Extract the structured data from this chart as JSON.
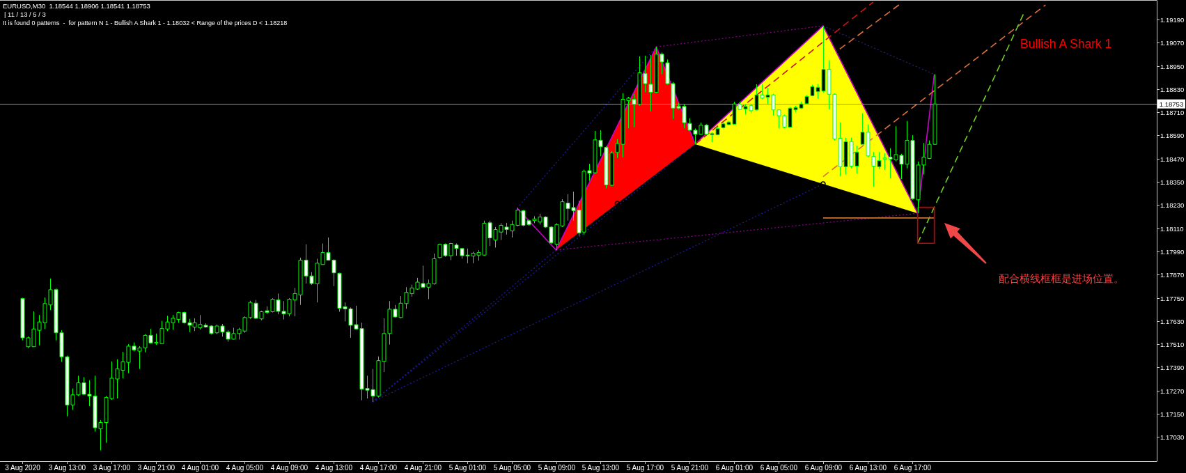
{
  "chart_data": {
    "type": "candlestick",
    "title": "EURUSD,M30  1.18544 1.18906 1.18541 1.18753",
    "subtitle": "| 11 / 13 / 5 / 3",
    "annotations": [
      "It is found 0 patterns  -  for pattern N 1 - Bullish A Shark 1 - 1.18032 < Range of the prices D < 1.18218",
      "Bullish A Shark 1",
      "配合横线框框是进场位置。"
    ],
    "color": "#00ff00",
    "x": [
      "2020-08-03T09:00",
      "2020-08-03T09:30",
      "2020-08-03T10:00",
      "2020-08-03T10:30",
      "2020-08-03T11:00",
      "2020-08-03T11:30",
      "2020-08-03T12:00",
      "2020-08-03T12:30",
      "2020-08-03T13:00",
      "2020-08-03T13:30",
      "2020-08-03T14:00",
      "2020-08-03T14:30",
      "2020-08-03T15:00",
      "2020-08-03T15:30",
      "2020-08-03T16:00",
      "2020-08-03T16:30",
      "2020-08-03T17:00",
      "2020-08-03T17:30",
      "2020-08-03T18:00",
      "2020-08-03T18:30",
      "2020-08-03T19:00",
      "2020-08-03T19:30",
      "2020-08-03T20:00",
      "2020-08-03T20:30",
      "2020-08-03T21:00",
      "2020-08-03T21:30",
      "2020-08-03T22:00",
      "2020-08-03T22:30",
      "2020-08-03T23:00",
      "2020-08-03T23:30",
      "2020-08-04T00:00",
      "2020-08-04T00:30",
      "2020-08-04T01:00",
      "2020-08-04T01:30",
      "2020-08-04T02:00",
      "2020-08-04T02:30",
      "2020-08-04T03:00",
      "2020-08-04T03:30",
      "2020-08-04T04:00",
      "2020-08-04T04:30",
      "2020-08-04T05:00",
      "2020-08-04T05:30",
      "2020-08-04T06:00",
      "2020-08-04T06:30",
      "2020-08-04T07:00",
      "2020-08-04T07:30",
      "2020-08-04T08:00",
      "2020-08-04T08:30",
      "2020-08-04T09:00",
      "2020-08-04T09:30",
      "2020-08-04T10:00",
      "2020-08-04T10:30",
      "2020-08-04T11:00",
      "2020-08-04T11:30",
      "2020-08-04T12:00",
      "2020-08-04T12:30",
      "2020-08-04T13:00",
      "2020-08-04T13:30",
      "2020-08-04T14:00",
      "2020-08-04T14:30",
      "2020-08-04T15:00",
      "2020-08-04T15:30",
      "2020-08-04T16:00",
      "2020-08-04T16:30",
      "2020-08-04T17:00",
      "2020-08-04T17:30",
      "2020-08-04T18:00",
      "2020-08-04T18:30",
      "2020-08-04T19:00",
      "2020-08-04T19:30",
      "2020-08-04T20:00",
      "2020-08-04T20:30",
      "2020-08-04T21:00",
      "2020-08-04T21:30",
      "2020-08-04T22:00",
      "2020-08-04T22:30",
      "2020-08-04T23:00",
      "2020-08-04T23:30",
      "2020-08-05T00:00",
      "2020-08-05T00:30",
      "2020-08-05T01:00",
      "2020-08-05T01:30",
      "2020-08-05T02:00",
      "2020-08-05T02:30",
      "2020-08-05T03:00",
      "2020-08-05T03:30",
      "2020-08-05T04:00",
      "2020-08-05T04:30",
      "2020-08-05T05:00",
      "2020-08-05T05:30",
      "2020-08-05T06:00",
      "2020-08-05T06:30",
      "2020-08-05T07:00",
      "2020-08-05T07:30",
      "2020-08-05T08:00",
      "2020-08-05T08:30",
      "2020-08-05T09:00",
      "2020-08-05T09:30",
      "2020-08-05T10:00",
      "2020-08-05T10:30",
      "2020-08-05T11:00",
      "2020-08-05T11:30",
      "2020-08-05T12:00",
      "2020-08-05T12:30",
      "2020-08-05T13:00",
      "2020-08-05T13:30",
      "2020-08-05T14:00",
      "2020-08-05T14:30",
      "2020-08-05T15:00",
      "2020-08-05T15:30",
      "2020-08-05T16:00",
      "2020-08-05T16:30",
      "2020-08-05T17:00",
      "2020-08-05T17:30",
      "2020-08-05T18:00",
      "2020-08-05T18:30",
      "2020-08-05T19:00",
      "2020-08-05T19:30",
      "2020-08-05T20:00",
      "2020-08-05T20:30",
      "2020-08-05T21:00",
      "2020-08-05T21:30",
      "2020-08-05T22:00",
      "2020-08-05T22:30",
      "2020-08-05T23:00",
      "2020-08-05T23:30",
      "2020-08-06T00:00",
      "2020-08-06T00:30",
      "2020-08-06T01:00",
      "2020-08-06T01:30",
      "2020-08-06T02:00",
      "2020-08-06T02:30",
      "2020-08-06T03:00",
      "2020-08-06T03:30",
      "2020-08-06T04:00",
      "2020-08-06T04:30",
      "2020-08-06T05:00",
      "2020-08-06T05:30",
      "2020-08-06T06:00",
      "2020-08-06T06:30",
      "2020-08-06T07:00",
      "2020-08-06T07:30",
      "2020-08-06T08:00",
      "2020-08-06T08:30",
      "2020-08-06T09:00",
      "2020-08-06T09:30",
      "2020-08-06T10:00",
      "2020-08-06T10:30",
      "2020-08-06T11:00",
      "2020-08-06T11:30",
      "2020-08-06T12:00",
      "2020-08-06T12:30",
      "2020-08-06T13:00",
      "2020-08-06T13:30",
      "2020-08-06T14:00",
      "2020-08-06T14:30",
      "2020-08-06T15:00",
      "2020-08-06T15:30",
      "2020-08-06T16:00",
      "2020-08-06T16:30",
      "2020-08-06T17:00",
      "2020-08-06T17:30",
      "2020-08-06T18:00",
      "2020-08-06T18:30",
      "2020-08-06T19:00"
    ],
    "ohlc": [
      [
        1.17746,
        1.1775,
        1.1753,
        1.17543
      ],
      [
        1.17497,
        1.1755,
        1.1749,
        1.17543
      ],
      [
        1.17497,
        1.1768,
        1.17495,
        1.17589
      ],
      [
        1.17582,
        1.17661,
        1.17504,
        1.17625
      ],
      [
        1.17621,
        1.17752,
        1.17589,
        1.1772
      ],
      [
        1.17713,
        1.1785,
        1.17687,
        1.17792
      ],
      [
        1.17792,
        1.17798,
        1.1753,
        1.17569
      ],
      [
        1.17569,
        1.17582,
        1.17419,
        1.17445
      ],
      [
        1.17445,
        1.17451,
        1.17137,
        1.17196
      ],
      [
        1.17196,
        1.17281,
        1.1717,
        1.17248
      ],
      [
        1.17248,
        1.17347,
        1.17242,
        1.1731
      ],
      [
        1.1731,
        1.1734,
        1.17249,
        1.17251
      ],
      [
        1.17251,
        1.17324,
        1.1719,
        1.17242
      ],
      [
        1.17242,
        1.17347,
        1.17059,
        1.17078
      ],
      [
        1.17072,
        1.17118,
        1.16961,
        1.17105
      ],
      [
        1.17105,
        1.17242,
        1.17,
        1.17235
      ],
      [
        1.17229,
        1.17421,
        1.17222,
        1.17334
      ],
      [
        1.1733,
        1.17432,
        1.17229,
        1.17382
      ],
      [
        1.17375,
        1.17471,
        1.17334,
        1.17419
      ],
      [
        1.17416,
        1.1751,
        1.1736,
        1.175
      ],
      [
        1.175,
        1.17519,
        1.17473,
        1.17481
      ],
      [
        1.17474,
        1.175,
        1.17382,
        1.17491
      ],
      [
        1.17491,
        1.17562,
        1.17468,
        1.17556
      ],
      [
        1.17556,
        1.17589,
        1.17513,
        1.17517
      ],
      [
        1.17517,
        1.17565,
        1.17507,
        1.1752
      ],
      [
        1.17513,
        1.17631,
        1.1751,
        1.17591
      ],
      [
        1.17589,
        1.17657,
        1.17578,
        1.17625
      ],
      [
        1.17621,
        1.17661,
        1.17586,
        1.17644
      ],
      [
        1.17638,
        1.17678,
        1.17621,
        1.17674
      ],
      [
        1.17674,
        1.17678,
        1.17617,
        1.17621
      ],
      [
        1.17621,
        1.17641,
        1.17573,
        1.17608
      ],
      [
        1.17598,
        1.17644,
        1.17578,
        1.17621
      ],
      [
        1.17595,
        1.17661,
        1.17586,
        1.17612
      ],
      [
        1.17608,
        1.17618,
        1.17595,
        1.17599
      ],
      [
        1.17604,
        1.17608,
        1.1756,
        1.17565
      ],
      [
        1.17569,
        1.17612,
        1.17562,
        1.17604
      ],
      [
        1.17604,
        1.17615,
        1.17549,
        1.17573
      ],
      [
        1.17573,
        1.17582,
        1.17523,
        1.17536
      ],
      [
        1.17536,
        1.17595,
        1.17534,
        1.17565
      ],
      [
        1.17565,
        1.17595,
        1.17534,
        1.17586
      ],
      [
        1.17578,
        1.17654,
        1.17569,
        1.17648
      ],
      [
        1.17648,
        1.17735,
        1.17641,
        1.17726
      ],
      [
        1.17722,
        1.17739,
        1.17641,
        1.17644
      ],
      [
        1.17641,
        1.17683,
        1.17634,
        1.17678
      ],
      [
        1.17683,
        1.17706,
        1.17667,
        1.17674
      ],
      [
        1.17678,
        1.17748,
        1.17674,
        1.17743
      ],
      [
        1.17739,
        1.17772,
        1.17665,
        1.1768
      ],
      [
        1.1768,
        1.17733,
        1.17638,
        1.17667
      ],
      [
        1.17667,
        1.17748,
        1.17654,
        1.17743
      ],
      [
        1.17739,
        1.17801,
        1.17654,
        1.17772
      ],
      [
        1.17765,
        1.17958,
        1.17713,
        1.17945
      ],
      [
        1.17945,
        1.18027,
        1.17824,
        1.17863
      ],
      [
        1.17863,
        1.17883,
        1.17817,
        1.17824
      ],
      [
        1.17822,
        1.17952,
        1.17726,
        1.17929
      ],
      [
        1.17922,
        1.18031,
        1.17922,
        1.17984
      ],
      [
        1.17984,
        1.18062,
        1.17942,
        1.17945
      ],
      [
        1.17945,
        1.17949,
        1.17811,
        1.17879
      ],
      [
        1.17877,
        1.17879,
        1.17678,
        1.17696
      ],
      [
        1.17704,
        1.17726,
        1.17628,
        1.17693
      ],
      [
        1.17693,
        1.177,
        1.17543,
        1.17608
      ],
      [
        1.17611,
        1.17709,
        1.17586,
        1.17589
      ],
      [
        1.17591,
        1.17621,
        1.1722,
        1.17277
      ],
      [
        1.17281,
        1.17347,
        1.17229,
        1.17272
      ],
      [
        1.17275,
        1.17382,
        1.17212,
        1.17242
      ],
      [
        1.17242,
        1.17447,
        1.17235,
        1.17425
      ],
      [
        1.17421,
        1.17644,
        1.17366,
        1.17565
      ],
      [
        1.17565,
        1.17733,
        1.17508,
        1.17691
      ],
      [
        1.17691,
        1.17713,
        1.17648,
        1.17651
      ],
      [
        1.17648,
        1.17759,
        1.17644,
        1.17722
      ],
      [
        1.1772,
        1.17805,
        1.17693,
        1.17778
      ],
      [
        1.17772,
        1.17818,
        1.17756,
        1.17801
      ],
      [
        1.17795,
        1.17853,
        1.17791,
        1.17831
      ],
      [
        1.17824,
        1.17916,
        1.17801,
        1.17805
      ],
      [
        1.17805,
        1.17844,
        1.17743,
        1.17824
      ],
      [
        1.17822,
        1.17979,
        1.17818,
        1.17952
      ],
      [
        1.17958,
        1.1803,
        1.17955,
        1.18027
      ],
      [
        1.18027,
        1.18031,
        1.17962,
        1.17968
      ],
      [
        1.17968,
        1.18034,
        1.17945,
        1.18031
      ],
      [
        1.18023,
        1.18031,
        1.17968,
        1.18005
      ],
      [
        1.18005,
        1.18008,
        1.17952,
        1.17968
      ],
      [
        1.17971,
        1.18005,
        1.17929,
        1.17966
      ],
      [
        1.17966,
        1.17988,
        1.17929,
        1.17981
      ],
      [
        1.17971,
        1.17997,
        1.17942,
        1.17984
      ],
      [
        1.17971,
        1.18149,
        1.17968,
        1.18136
      ],
      [
        1.18138,
        1.18149,
        1.18018,
        1.1806
      ],
      [
        1.18049,
        1.18116,
        1.1801,
        1.18103
      ],
      [
        1.1809,
        1.18136,
        1.18049,
        1.18125
      ],
      [
        1.18116,
        1.18138,
        1.18077,
        1.18103
      ],
      [
        1.18096,
        1.18149,
        1.18062,
        1.18129
      ],
      [
        1.18125,
        1.18214,
        1.1812,
        1.18204
      ],
      [
        1.18201,
        1.18204,
        1.1812,
        1.18125
      ],
      [
        1.18149,
        1.18155,
        1.18123,
        1.18129
      ],
      [
        1.18149,
        1.18172,
        1.18136,
        1.18158
      ],
      [
        1.18142,
        1.18185,
        1.18129,
        1.18168
      ],
      [
        1.18168,
        1.18172,
        1.18112,
        1.18116
      ],
      [
        1.18116,
        1.1812,
        1.1803,
        1.18034
      ],
      [
        1.18027,
        1.18136,
        1.17997,
        1.18129
      ],
      [
        1.18122,
        1.1826,
        1.18116,
        1.18247
      ],
      [
        1.1824,
        1.18286,
        1.18149,
        1.18211
      ],
      [
        1.18217,
        1.18299,
        1.18149,
        1.18201
      ],
      [
        1.18204,
        1.18253,
        1.1807,
        1.18086
      ],
      [
        1.1809,
        1.18413,
        1.18077,
        1.18404
      ],
      [
        1.18408,
        1.18443,
        1.18355,
        1.18395
      ],
      [
        1.18397,
        1.18613,
        1.18391,
        1.18567
      ],
      [
        1.18565,
        1.18617,
        1.18482,
        1.18531
      ],
      [
        1.18528,
        1.18535,
        1.18316,
        1.18334
      ],
      [
        1.18332,
        1.18508,
        1.18329,
        1.18499
      ],
      [
        1.18502,
        1.1857,
        1.18473,
        1.18548
      ],
      [
        1.18544,
        1.18809,
        1.18476,
        1.18777
      ],
      [
        1.1877,
        1.1879,
        1.18626,
        1.18783
      ],
      [
        1.18777,
        1.18805,
        1.18633,
        1.18751
      ],
      [
        1.18751,
        1.18999,
        1.18744,
        1.18914
      ],
      [
        1.1891,
        1.19002,
        1.18813,
        1.18858
      ],
      [
        1.18855,
        1.19006,
        1.18714,
        1.18813
      ],
      [
        1.18813,
        1.19048,
        1.18809,
        1.1901
      ],
      [
        1.1901,
        1.19019,
        1.18907,
        1.1897
      ],
      [
        1.18966,
        1.18983,
        1.18853,
        1.18858
      ],
      [
        1.18858,
        1.18866,
        1.18675,
        1.18731
      ],
      [
        1.1874,
        1.18757,
        1.18724,
        1.18731
      ],
      [
        1.1874,
        1.18751,
        1.18626,
        1.18656
      ],
      [
        1.18652,
        1.18679,
        1.18613,
        1.18617
      ],
      [
        1.18617,
        1.18626,
        1.18545,
        1.18596
      ],
      [
        1.18596,
        1.18656,
        1.18593,
        1.18643
      ],
      [
        1.18643,
        1.18648,
        1.18593,
        1.18596
      ],
      [
        1.18593,
        1.18606,
        1.18554,
        1.186
      ],
      [
        1.18593,
        1.18633,
        1.1859,
        1.18626
      ],
      [
        1.1863,
        1.18656,
        1.18626,
        1.1865
      ],
      [
        1.18646,
        1.18665,
        1.18643,
        1.18659
      ],
      [
        1.18648,
        1.18764,
        1.18646,
        1.18753
      ],
      [
        1.18751,
        1.18764,
        1.18722,
        1.18724
      ],
      [
        1.18727,
        1.18751,
        1.18698,
        1.1874
      ],
      [
        1.18744,
        1.18751,
        1.18711,
        1.18718
      ],
      [
        1.18722,
        1.18855,
        1.18718,
        1.188
      ],
      [
        1.188,
        1.18855,
        1.18777,
        1.18783
      ],
      [
        1.18787,
        1.18836,
        1.18751,
        1.188
      ],
      [
        1.188,
        1.18805,
        1.18692,
        1.18722
      ],
      [
        1.18722,
        1.18724,
        1.18626,
        1.18692
      ],
      [
        1.18692,
        1.18698,
        1.18626,
        1.18633
      ],
      [
        1.18633,
        1.18738,
        1.1863,
        1.18731
      ],
      [
        1.18722,
        1.18744,
        1.18711,
        1.18735
      ],
      [
        1.18731,
        1.18764,
        1.18727,
        1.18753
      ],
      [
        1.18754,
        1.18799,
        1.18752,
        1.18792
      ],
      [
        1.18795,
        1.18852,
        1.18792,
        1.18843
      ],
      [
        1.18816,
        1.18856,
        1.18781,
        1.18839
      ],
      [
        1.18819,
        1.19157,
        1.18812,
        1.18932
      ],
      [
        1.18932,
        1.18979,
        1.18725,
        1.18803
      ],
      [
        1.18803,
        1.18808,
        1.18564,
        1.18571
      ],
      [
        1.18575,
        1.18658,
        1.1838,
        1.18428
      ],
      [
        1.18428,
        1.18578,
        1.18388,
        1.18558
      ],
      [
        1.18558,
        1.18578,
        1.1842,
        1.18431
      ],
      [
        1.18431,
        1.18538,
        1.18393,
        1.18504
      ],
      [
        1.18544,
        1.18705,
        1.1854,
        1.18607
      ],
      [
        1.18607,
        1.18647,
        1.18478,
        1.18484
      ],
      [
        1.18481,
        1.18504,
        1.18324,
        1.18431
      ],
      [
        1.18428,
        1.18504,
        1.18417,
        1.1846
      ],
      [
        1.18473,
        1.18498,
        1.18411,
        1.18468
      ],
      [
        1.18478,
        1.18524,
        1.18367,
        1.18468
      ],
      [
        1.18464,
        1.18638,
        1.18457,
        1.18491
      ],
      [
        1.18487,
        1.18495,
        1.18364,
        1.18441
      ],
      [
        1.18441,
        1.18665,
        1.1842,
        1.18564
      ],
      [
        1.18564,
        1.18591,
        1.18257,
        1.18263
      ],
      [
        1.18257,
        1.18455,
        1.18187,
        1.18437
      ],
      [
        1.18437,
        1.18551,
        1.18388,
        1.18478
      ],
      [
        1.18471,
        1.18564,
        1.18468,
        1.18544
      ],
      [
        1.18544,
        1.18906,
        1.18541,
        1.18753
      ]
    ],
    "colors": [
      "#ffffff",
      "#000000",
      "#000000",
      "#000000",
      "#000000",
      "#000000",
      "#ffffff",
      "#ffffff",
      "#ffffff",
      "#000000",
      "#000000",
      "#ffffff",
      "#ffffff",
      "#ffffff",
      "#000000",
      "#000000",
      "#000000",
      "#000000",
      "#000000",
      "#000000",
      "#ffffff",
      "#000000",
      "#000000",
      "#ffffff",
      "#000000",
      "#000000",
      "#000000",
      "#000000",
      "#000000",
      "#ffffff",
      "#ffffff",
      "#000000",
      "#000000",
      "#ffffff",
      "#ffffff",
      "#000000",
      "#ffffff",
      "#ffffff",
      "#000000",
      "#000000",
      "#000000",
      "#000000",
      "#ffffff",
      "#000000",
      "#ffffff",
      "#000000",
      "#ffffff",
      "#ffffff",
      "#000000",
      "#000000",
      "#000000",
      "#ffffff",
      "#ffffff",
      "#000000",
      "#000000",
      "#ffffff",
      "#ffffff",
      "#ffffff",
      "#ffffff",
      "#ffffff",
      "#ffffff",
      "#ffffff",
      "#ffffff",
      "#ffffff",
      "#000000",
      "#000000",
      "#000000",
      "#ffffff",
      "#000000",
      "#000000",
      "#000000",
      "#000000",
      "#ffffff",
      "#000000",
      "#000000",
      "#000000",
      "#ffffff",
      "#000000",
      "#ffffff",
      "#ffffff",
      "#ffffff",
      "#000000",
      "#000000",
      "#000000",
      "#ffffff",
      "#000000",
      "#000000",
      "#ffffff",
      "#000000",
      "#000000",
      "#ffffff",
      "#ffffff",
      "#000000",
      "#000000",
      "#ffffff",
      "#ffffff",
      "#000000",
      "#000000",
      "#ffffff",
      "#ffffff",
      "#ffffff",
      "#000000",
      "#ffffff",
      "#000000",
      "#ffffff",
      "#ffffff",
      "#000000",
      "#000000",
      "#000000",
      "#000000",
      "#ffffff",
      "#000000",
      "#ffffff",
      "#ffffff",
      "#000000",
      "#ffffff",
      "#ffffff",
      "#ffffff",
      "#ffffff",
      "#ffffff",
      "#ffffff",
      "#ffffff",
      "#000000",
      "#ffffff",
      "#000000",
      "#000000",
      "#000000",
      "#000000",
      "#000000",
      "#ffffff",
      "#000000",
      "#ffffff",
      "#000000",
      "#ffffff",
      "#000000",
      "#ffffff",
      "#ffffff",
      "#ffffff",
      "#000000",
      "#000000",
      "#000000",
      "#000000",
      "#000000",
      "#000000",
      "#000000",
      "#ffffff",
      "#ffffff",
      "#ffffff",
      "#000000",
      "#ffffff",
      "#000000",
      "#000000",
      "#ffffff",
      "#ffffff",
      "#000000",
      "#ffffff",
      "#ffffff",
      "#000000",
      "#ffffff",
      "#000000",
      "#ffffff",
      "#000000",
      "#000000",
      "#000000",
      "#000000"
    ],
    "series": [
      {
        "type": "area",
        "color": "#ff0000",
        "x": [
          "2020-08-05T09:00",
          "2020-08-05T18:00",
          "2020-08-05T21:30"
        ],
        "values": [
          1.17997,
          1.19048,
          1.18545
        ]
      },
      {
        "type": "area",
        "color": "#ffff00",
        "x": [
          "2020-08-05T21:30",
          "2020-08-06T09:00",
          "2020-08-06T17:30"
        ],
        "values": [
          1.18545,
          1.19157,
          1.18187
        ]
      },
      {
        "type": "line",
        "line_style": "dotted",
        "color": "#1c1c9c",
        "x": [
          "2020-08-04T16:30",
          "2020-08-05T09:00"
        ],
        "values": [
          1.17212,
          1.17997
        ]
      },
      {
        "type": "line",
        "line_style": "dotted",
        "color": "#1c1c9c",
        "x": [
          "2020-08-04T16:30",
          "2020-08-05T21:30"
        ],
        "values": [
          1.17212,
          1.18545
        ]
      },
      {
        "type": "line",
        "line_style": "dotted",
        "color": "#1c1c9c",
        "x": [
          "2020-08-04T16:30",
          "2020-08-06T09:00"
        ],
        "values": [
          1.17212,
          1.18339
        ]
      },
      {
        "type": "line",
        "line_style": "dotted",
        "color": "#1c1c9c",
        "x": [
          "2020-08-05T05:30",
          "2020-08-05T18:00"
        ],
        "values": [
          1.18214,
          1.19048
        ]
      },
      {
        "type": "line",
        "line_style": "dotted",
        "color": "#1c1c9c",
        "x": [
          "2020-08-06T09:00",
          "2020-08-06T19:00"
        ],
        "values": [
          1.19157,
          1.18906
        ]
      },
      {
        "type": "line",
        "line_style": "dotted",
        "color": "#8b008b",
        "x": [
          "2020-08-05T18:00",
          "2020-08-06T09:00"
        ],
        "values": [
          1.19048,
          1.19157
        ]
      },
      {
        "type": "line",
        "line_style": "dotted",
        "color": "#8b008b",
        "x": [
          "2020-08-05T09:00",
          "2020-08-06T17:30"
        ],
        "values": [
          1.17997,
          1.18187
        ]
      },
      {
        "type": "line",
        "line_style": "solid",
        "color": "#cc00cc",
        "x": [
          "2020-08-05T05:30",
          "2020-08-05T09:00",
          "2020-08-05T18:00",
          "2020-08-05T21:30",
          "2020-08-06T09:00",
          "2020-08-06T17:30",
          "2020-08-06T19:00"
        ],
        "values": [
          1.18214,
          1.17997,
          1.19048,
          1.18545,
          1.19157,
          1.18187,
          1.18906
        ]
      },
      {
        "type": "line",
        "line_style": "dashed",
        "color": "#c81414",
        "x": [
          "2020-08-05T21:30",
          "2020-08-06T13:30"
        ],
        "values": [
          1.18545,
          1.1928
        ]
      },
      {
        "type": "line",
        "line_style": "dashed",
        "color": "#dc6e3c",
        "x": [
          "2020-08-06T10:30",
          "2020-08-06T16:00"
        ],
        "values": [
          1.19037,
          1.19273
        ]
      },
      {
        "type": "line",
        "line_style": "dashed",
        "color": "#dc6e3c",
        "x": [
          "2020-08-06T09:00",
          "2020-08-07T05:00"
        ],
        "values": [
          1.18377,
          1.19265
        ]
      },
      {
        "type": "line",
        "line_style": "dashed",
        "color": "#6fcf1f",
        "x": [
          "2020-08-06T17:30",
          "2020-08-07T03:00"
        ],
        "values": [
          1.18032,
          1.19216
        ]
      },
      {
        "type": "line",
        "line_style": "solid",
        "color": "#c87533",
        "x": [
          "2020-08-06T09:00",
          "2020-08-06T19:00"
        ],
        "values": [
          1.18163,
          1.18163
        ]
      },
      {
        "type": "line",
        "line_style": "solid",
        "color": "#cc0000",
        "x": [
          "2020-08-06T17:30",
          "2020-08-06T17:30",
          "2020-08-06T19:00"
        ],
        "values": [
          1.18032,
          1.18218,
          1.18218
        ]
      },
      {
        "type": "line",
        "line_style": "solid",
        "color": "#cc0000",
        "x": [
          "2020-08-06T17:30",
          "2020-08-06T19:00",
          "2020-08-06T19:00"
        ],
        "values": [
          1.18032,
          1.18032,
          1.18218
        ]
      },
      {
        "type": "scatter",
        "marker": "circle",
        "color": "#000000",
        "x": [
          "2020-08-05T14:30",
          "2020-08-06T09:00"
        ],
        "values": [
          1.18238,
          1.18339
        ]
      }
    ],
    "ref_lines": [
      {
        "axis": "y",
        "value": 1.18753,
        "label": "1.18753",
        "color": "#8c96a0"
      }
    ],
    "xlim": [
      "2020-08-03T07:00",
      "2020-08-07T15:00"
    ],
    "xticks": [
      {
        "value": "2020-08-03T09:00",
        "label": "3 Aug 2020"
      },
      {
        "value": "2020-08-03T13:00",
        "label": "3 Aug 13:00"
      },
      {
        "value": "2020-08-03T17:00",
        "label": "3 Aug 17:00"
      },
      {
        "value": "2020-08-03T21:00",
        "label": "3 Aug 21:00"
      },
      {
        "value": "2020-08-04T01:00",
        "label": "4 Aug 01:00"
      },
      {
        "value": "2020-08-04T05:00",
        "label": "4 Aug 05:00"
      },
      {
        "value": "2020-08-04T09:00",
        "label": "4 Aug 09:00"
      },
      {
        "value": "2020-08-04T13:00",
        "label": "4 Aug 13:00"
      },
      {
        "value": "2020-08-04T17:00",
        "label": "4 Aug 17:00"
      },
      {
        "value": "2020-08-04T21:00",
        "label": "4 Aug 21:00"
      },
      {
        "value": "2020-08-05T01:00",
        "label": "5 Aug 01:00"
      },
      {
        "value": "2020-08-05T05:00",
        "label": "5 Aug 05:00"
      },
      {
        "value": "2020-08-05T09:00",
        "label": "5 Aug 09:00"
      },
      {
        "value": "2020-08-05T13:00",
        "label": "5 Aug 13:00"
      },
      {
        "value": "2020-08-05T17:00",
        "label": "5 Aug 17:00"
      },
      {
        "value": "2020-08-05T21:00",
        "label": "5 Aug 21:00"
      },
      {
        "value": "2020-08-06T01:00",
        "label": "6 Aug 01:00"
      },
      {
        "value": "2020-08-06T05:00",
        "label": "6 Aug 05:00"
      },
      {
        "value": "2020-08-06T09:00",
        "label": "6 Aug 09:00"
      },
      {
        "value": "2020-08-06T13:00",
        "label": "6 Aug 13:00"
      },
      {
        "value": "2020-08-06T17:00",
        "label": "6 Aug 17:00"
      }
    ],
    "ylim": [
      1.16905,
      1.19287
    ],
    "yticks": [
      {
        "value": 1.1703,
        "label": "1.17030"
      },
      {
        "value": 1.1715,
        "label": "1.17150"
      },
      {
        "value": 1.1727,
        "label": "1.17270"
      },
      {
        "value": 1.1739,
        "label": "1.17390"
      },
      {
        "value": 1.1751,
        "label": "1.17510"
      },
      {
        "value": 1.1763,
        "label": "1.17630"
      },
      {
        "value": 1.1775,
        "label": "1.17750"
      },
      {
        "value": 1.1787,
        "label": "1.17870"
      },
      {
        "value": 1.1799,
        "label": "1.17990"
      },
      {
        "value": 1.1811,
        "label": "1.18110"
      },
      {
        "value": 1.1823,
        "label": "1.18230"
      },
      {
        "value": 1.1835,
        "label": "1.18350"
      },
      {
        "value": 1.1847,
        "label": "1.18470"
      },
      {
        "value": 1.1859,
        "label": "1.18590"
      },
      {
        "value": 1.1871,
        "label": "1.18710"
      },
      {
        "value": 1.1883,
        "label": "1.18830"
      },
      {
        "value": 1.1895,
        "label": "1.18950"
      },
      {
        "value": 1.1907,
        "label": "1.19070"
      },
      {
        "value": 1.1919,
        "label": "1.19190"
      }
    ]
  }
}
